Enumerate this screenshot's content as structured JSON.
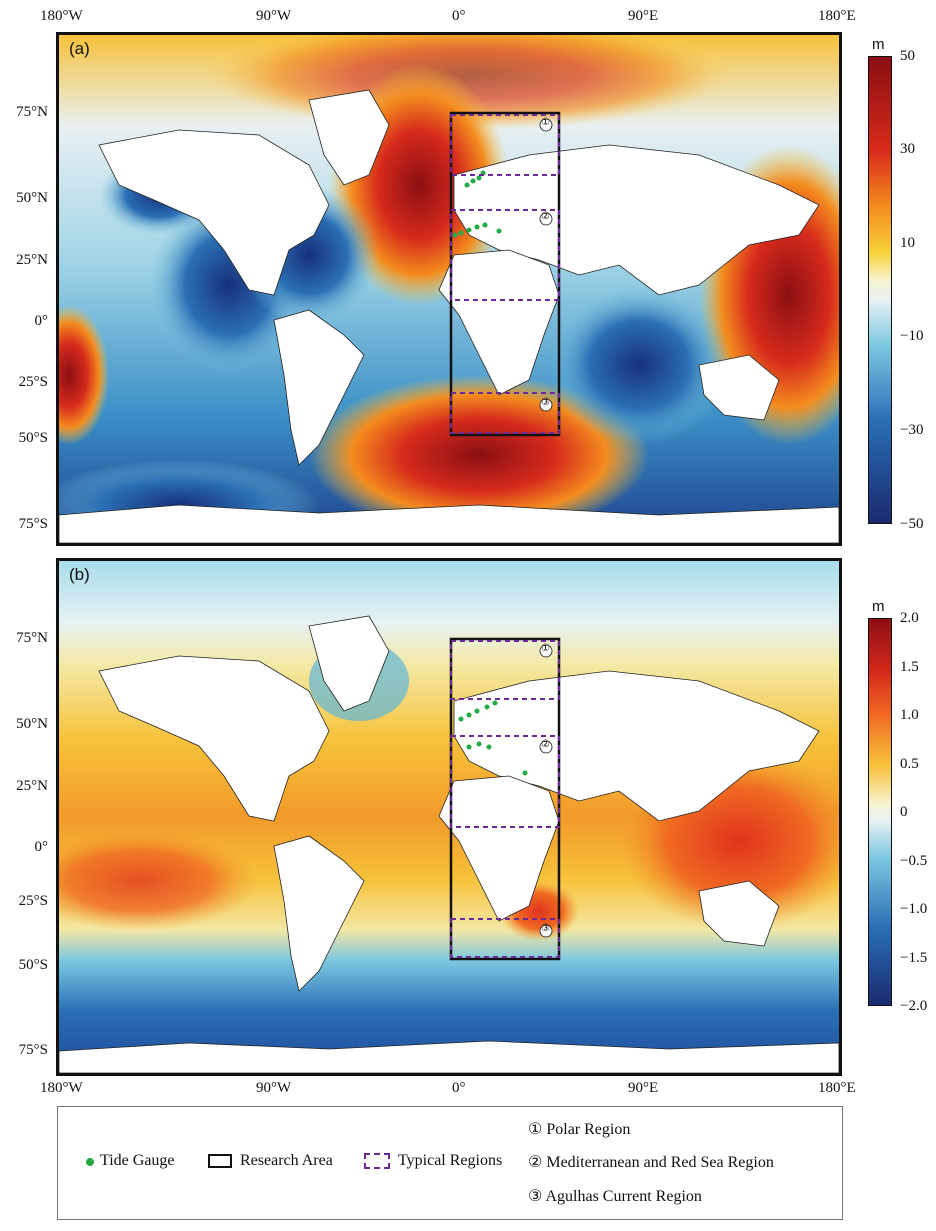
{
  "top_axis": {
    "lon_labels": [
      "180°W",
      "90°W",
      "0°",
      "90°E",
      "180°E"
    ]
  },
  "bottom_axis": {
    "lon_labels": [
      "180°W",
      "90°W",
      "0°",
      "90°E",
      "180°E"
    ]
  },
  "panel_a": {
    "label": "(a)",
    "lat_labels": [
      "75°N",
      "50°N",
      "25°N",
      "0°",
      "25°S",
      "50°S",
      "75°S"
    ],
    "colorbar": {
      "unit": "m",
      "ticks": [
        "50",
        "30",
        "10",
        "−10",
        "−30",
        "−50"
      ],
      "min": -50,
      "max": 50
    },
    "region_markers": [
      "①",
      "②",
      "③"
    ]
  },
  "panel_b": {
    "label": "(b)",
    "lat_labels": [
      "75°N",
      "50°N",
      "25°N",
      "0°",
      "25°S",
      "50°S",
      "75°S"
    ],
    "colorbar": {
      "unit": "m",
      "ticks": [
        "2.0",
        "1.5",
        "1.0",
        "0.5",
        "0",
        "−0.5",
        "−1.0",
        "−1.5",
        "−2.0"
      ],
      "min": -2.0,
      "max": 2.0
    },
    "region_markers": [
      "①",
      "②",
      "③"
    ]
  },
  "legend": {
    "tide_gauge": "Tide Gauge",
    "research_area": "Research Area",
    "typical_regions": "Typical Regions",
    "region_1": "① Polar Region",
    "region_2": "② Mediterranean and Red Sea Region",
    "region_3": "③ Agulhas Current Region"
  },
  "colors": {
    "tide_gauge": "#22aa44",
    "research_area": "#111111",
    "typical_regions": "#6a2a9a",
    "land": "#ffffff",
    "high": "#8b0f12",
    "low": "#1a2a6e"
  }
}
